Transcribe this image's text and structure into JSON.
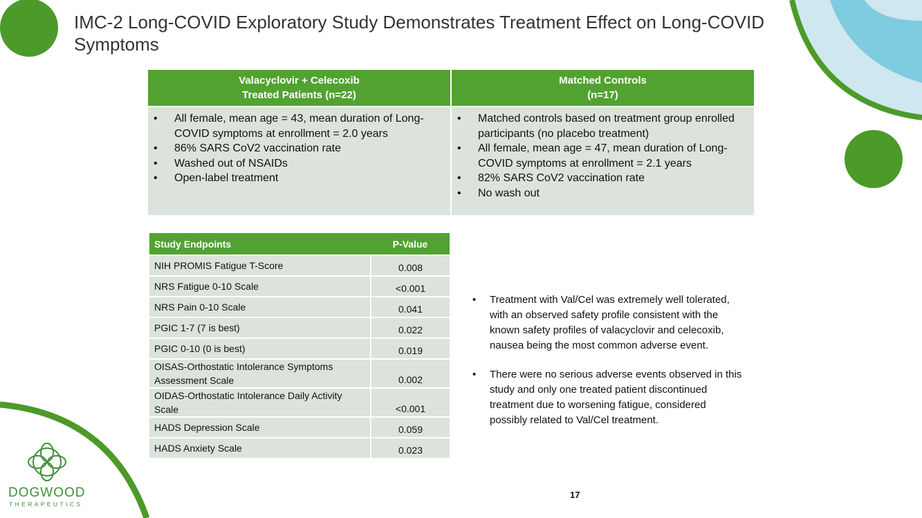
{
  "header": {
    "title": "IMC-2 Long-COVID Exploratory Study Demonstrates Treatment Effect on Long-COVID Symptoms"
  },
  "comparison": {
    "columns": [
      {
        "heading": [
          "Valacyclovir + Celecoxib",
          "Treated Patients (n=22)"
        ],
        "bullets": [
          "All female, mean age = 43, mean duration of Long-COVID symptoms at enrollment = 2.0 years",
          "86% SARS CoV2 vaccination rate",
          "Washed out of NSAIDs",
          "Open-label treatment"
        ]
      },
      {
        "heading": [
          "Matched Controls",
          "(n=17)"
        ],
        "bullets": [
          "Matched controls based on treatment group enrolled participants (no placebo treatment)",
          "All female, mean age = 47, mean duration of Long-COVID symptoms at enrollment = 2.1 years",
          "82% SARS CoV2 vaccination rate",
          "No wash out"
        ]
      }
    ]
  },
  "endpoints": {
    "header": [
      "Study Endpoints",
      "P-Value"
    ],
    "rows": [
      [
        "NIH PROMIS Fatigue T-Score",
        "0.008"
      ],
      [
        "NRS Fatigue 0-10 Scale",
        "<0.001"
      ],
      [
        "NRS Pain 0-10 Scale",
        "0.041"
      ],
      [
        "PGIC 1-7 (7 is best)",
        "0.022"
      ],
      [
        "PGIC 0-10 (0 is best)",
        "0.019"
      ],
      [
        "OISAS-Orthostatic Intolerance Symptoms Assessment Scale",
        "0.002"
      ],
      [
        "OIDAS-Orthostatic Intolerance Daily Activity Scale",
        "<0.001"
      ],
      [
        "HADS Depression Scale",
        "0.059"
      ],
      [
        "HADS Anxiety Scale",
        "0.023"
      ]
    ]
  },
  "notes": [
    "Treatment with Val/Cel was extremely well tolerated, with an observed safety profile consistent with the known safety profiles of valacyclovir and celecoxib, nausea being the most common adverse event.",
    "There were no serious adverse events observed in this study and only one treated patient discontinued treatment due to worsening fatigue, considered possibly related to Val/Cel treatment."
  ],
  "page_number": "17",
  "logo": {
    "name": "DOGWOOD",
    "tagline": "THERAPEUTICS"
  }
}
